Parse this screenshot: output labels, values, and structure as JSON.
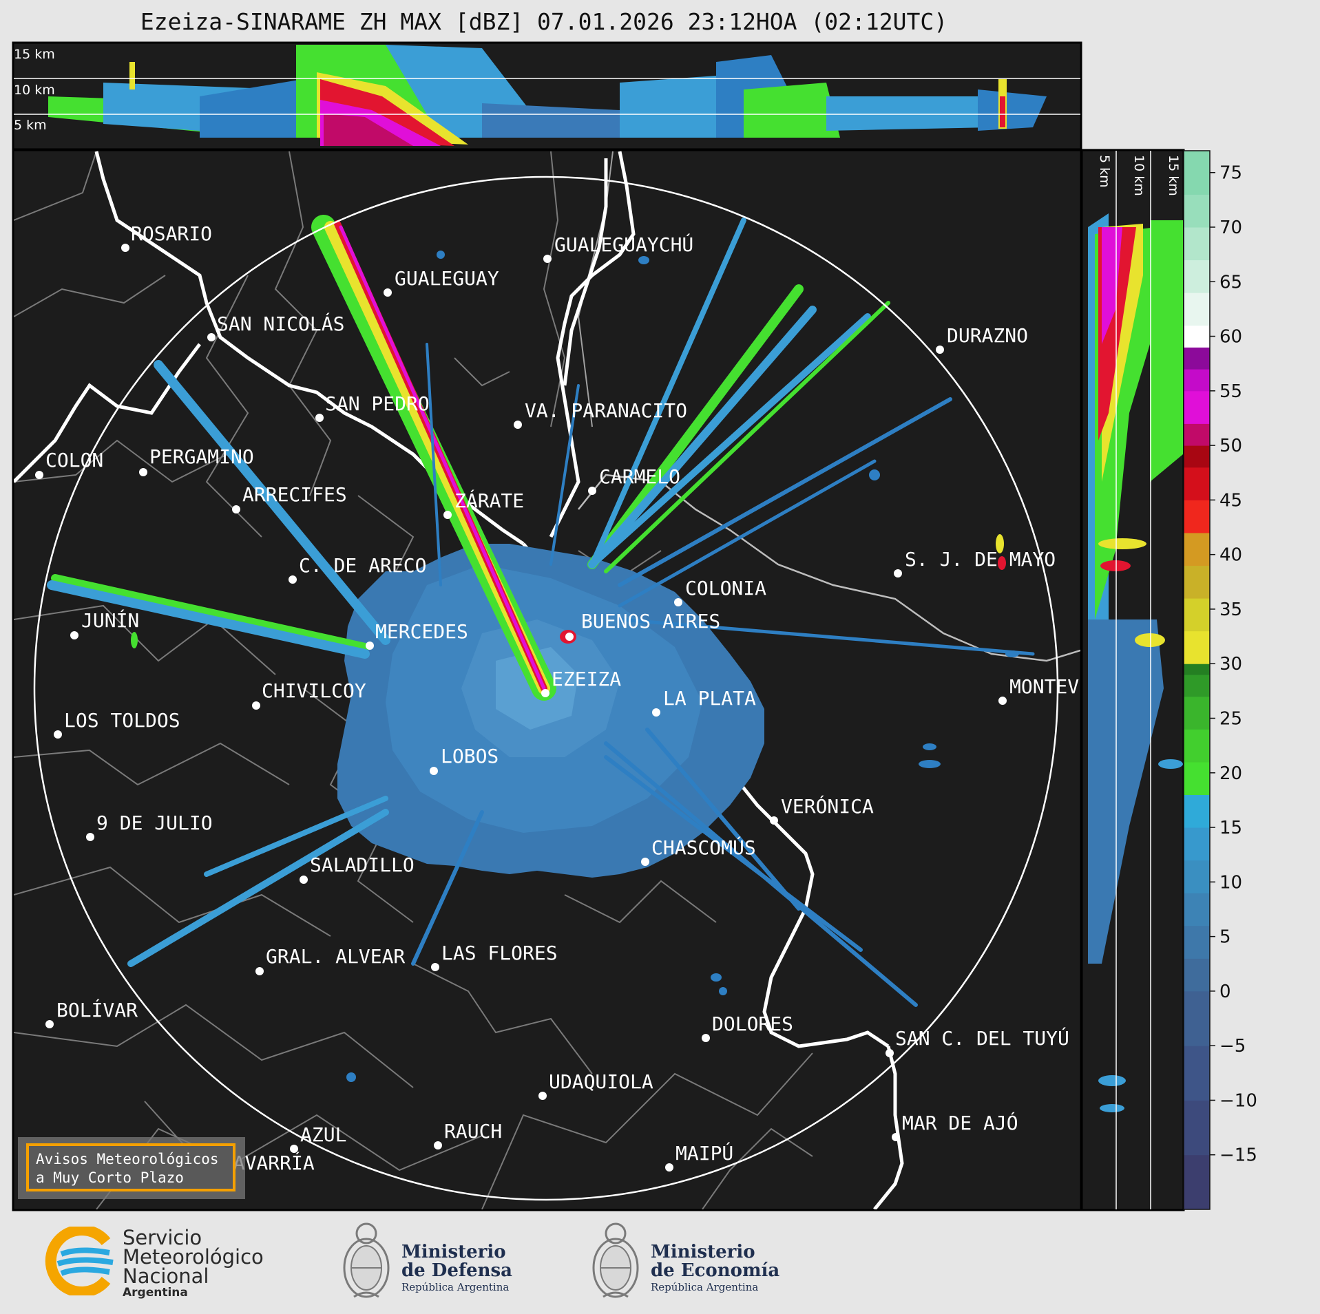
{
  "title": "Ezeiza-SINARAME ZH MAX [dBZ] 07.01.2026 23:12HOA (02:12UTC)",
  "top_panel_labels": [
    "15 km",
    "10 km",
    "5 km"
  ],
  "side_panel_labels": [
    "5 km",
    "10 km",
    "15 km"
  ],
  "colorbar": {
    "ticks": [
      "75",
      "70",
      "65",
      "60",
      "55",
      "50",
      "45",
      "40",
      "35",
      "30",
      "25",
      "20",
      "15",
      "10",
      "5",
      "0",
      "−5",
      "−10",
      "−15"
    ],
    "range": [
      -20,
      77
    ]
  },
  "cities": {
    "rosario": "ROSARIO",
    "gualeguaychu": "GUALEGUAYCHÚ",
    "gualeguay": "GUALEGUAY",
    "san_nicolas": "SAN NICOLÁS",
    "durazno": "DURAZNO",
    "san_pedro": "SAN PEDRO",
    "va_paranacito": "VA. PARANACITO",
    "colon": "COLON",
    "pergamino": "PERGAMINO",
    "carmelo": "CARMELO",
    "arrecifes": "ARRECIFES",
    "zarate": "ZÁRATE",
    "sj_de_mayo": "S. J. DE MAYO",
    "c_de_areco": "C. DE ARECO",
    "colonia": "COLONIA",
    "junin": "JUNÍN",
    "buenos_aires": "BUENOS AIRES",
    "mercedes": "MERCEDES",
    "ezeiza": "EZEIZA",
    "montevideo": "MONTEVIDEO",
    "chivilcoy": "CHIVILCOY",
    "la_plata": "LA PLATA",
    "los_toldos": "LOS TOLDOS",
    "lobos": "LOBOS",
    "veronica": "VERÓNICA",
    "nueve_de_julio": "9 DE JULIO",
    "chascomus": "CHASCOMÚS",
    "saladillo": "SALADILLO",
    "gral_alvear": "GRAL. ALVEAR",
    "las_flores": "LAS FLORES",
    "bolivar": "BOLÍVAR",
    "dolores": "DOLORES",
    "san_c_del_tuyu": "SAN C. DEL TUYÚ",
    "udaquiola": "UDAQUIOLA",
    "mar_de_ajo": "MAR DE AJÓ",
    "azul": "AZUL",
    "rauch": "RAUCH",
    "olavarria": "OLAVARRÍA",
    "maipu": "MAIPÚ"
  },
  "notice": {
    "line1": "Avisos Meteorológicos",
    "line2": "a Muy Corto Plazo"
  },
  "logos": {
    "smn": {
      "line1": "Servicio",
      "line2": "Meteorológico",
      "line3": "Nacional",
      "line4": "Argentina"
    },
    "defensa": {
      "line1": "Ministerio",
      "line2": "de Defensa",
      "line3": "República Argentina"
    },
    "economia": {
      "line1": "Ministerio",
      "line2": "de Economía",
      "line3": "República Argentina"
    }
  }
}
